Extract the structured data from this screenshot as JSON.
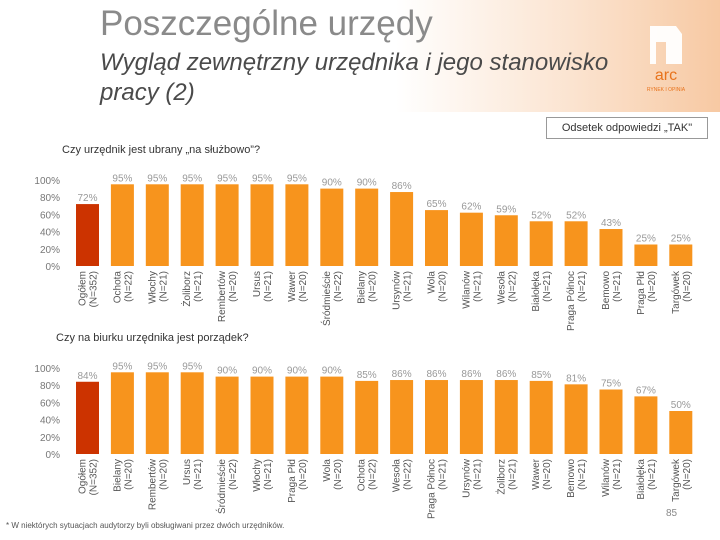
{
  "header": {
    "title": "Poszczególne urzędy",
    "subtitle": "Wygląd zewnętrzny urzędnika i jego stanowisko pracy (2)",
    "legend": "Odsetek odpowiedzi „TAK\"",
    "logo_text": "arc",
    "logo_subtext": "RYNEK I OPINIA"
  },
  "footer": {
    "footnote": "* W niektórych sytuacjach audytorzy byli obsługiwani przez dwóch urzędników.",
    "page_number": "85"
  },
  "colors": {
    "highlight": "#cc3300",
    "bar": "#f7941d",
    "value_text": "#999999"
  },
  "chart_data": [
    {
      "type": "bar",
      "title": "Czy urzędnik jest ubrany „na służbowo”?",
      "ylim": [
        0,
        100
      ],
      "yticks": [
        "100%",
        "80%",
        "60%",
        "40%",
        "20%",
        "0%"
      ],
      "categories": [
        [
          "Ogółem",
          "(N=352)"
        ],
        [
          "Ochota",
          "(N=22)"
        ],
        [
          "Włochy",
          "(N=21)"
        ],
        [
          "Żoliborz",
          "(N=21)"
        ],
        [
          "Rembertów",
          "(N=20)"
        ],
        [
          "Ursus",
          "(N=21)"
        ],
        [
          "Wawer",
          "(N=20)"
        ],
        [
          "Śródmieście",
          "(N=22)"
        ],
        [
          "Bielany",
          "(N=20)"
        ],
        [
          "Ursynów",
          "(N=21)"
        ],
        [
          "Wola",
          "(N=20)"
        ],
        [
          "Wilanów",
          "(N=21)"
        ],
        [
          "Wesoła",
          "(N=22)"
        ],
        [
          "Białołęka",
          "(N=21)"
        ],
        [
          "Praga Północ",
          "(N=21)"
        ],
        [
          "Bemowo",
          "(N=21)"
        ],
        [
          "Praga Płd",
          "(N=20)"
        ],
        [
          "Targówek",
          "(N=20)"
        ]
      ],
      "values": [
        72,
        95,
        95,
        95,
        95,
        95,
        95,
        90,
        90,
        86,
        65,
        62,
        59,
        52,
        52,
        43,
        25,
        25
      ],
      "labels": [
        "72%",
        "95%",
        "95%",
        "95%",
        "95%",
        "95%",
        "95%",
        "90%",
        "90%",
        "86%",
        "65%",
        "62%",
        "59%",
        "52%",
        "52%",
        "43%",
        "25%",
        "25%"
      ]
    },
    {
      "type": "bar",
      "title": "Czy na biurku urzędnika jest porządek?",
      "ylim": [
        0,
        100
      ],
      "yticks": [
        "100%",
        "80%",
        "60%",
        "40%",
        "20%",
        "0%"
      ],
      "categories": [
        [
          "Ogółem",
          "(N=352)"
        ],
        [
          "Bielany",
          "(N=20)"
        ],
        [
          "Rembertów",
          "(N=20)"
        ],
        [
          "Ursus",
          "(N=21)"
        ],
        [
          "Śródmieście",
          "(N=22)"
        ],
        [
          "Włochy",
          "(N=21)"
        ],
        [
          "Praga Płd",
          "(N=20)"
        ],
        [
          "Wola",
          "(N=20)"
        ],
        [
          "Ochota",
          "(N=22)"
        ],
        [
          "Wesoła",
          "(N=22)"
        ],
        [
          "Praga Północ",
          "(N=21)"
        ],
        [
          "Ursynów",
          "(N=21)"
        ],
        [
          "Żoliborz",
          "(N=21)"
        ],
        [
          "Wawer",
          "(N=20)"
        ],
        [
          "Bemowo",
          "(N=21)"
        ],
        [
          "Wilanów",
          "(N=21)"
        ],
        [
          "Białołęka",
          "(N=21)"
        ],
        [
          "Targówek",
          "(N=20)"
        ]
      ],
      "values": [
        84,
        95,
        95,
        95,
        90,
        90,
        90,
        90,
        85,
        86,
        86,
        86,
        86,
        85,
        81,
        75,
        67,
        50
      ],
      "labels": [
        "84%",
        "95%",
        "95%",
        "95%",
        "90%",
        "90%",
        "90%",
        "90%",
        "85%",
        "86%",
        "86%",
        "86%",
        "86%",
        "85%",
        "81%",
        "75%",
        "67%",
        "50%"
      ]
    }
  ]
}
